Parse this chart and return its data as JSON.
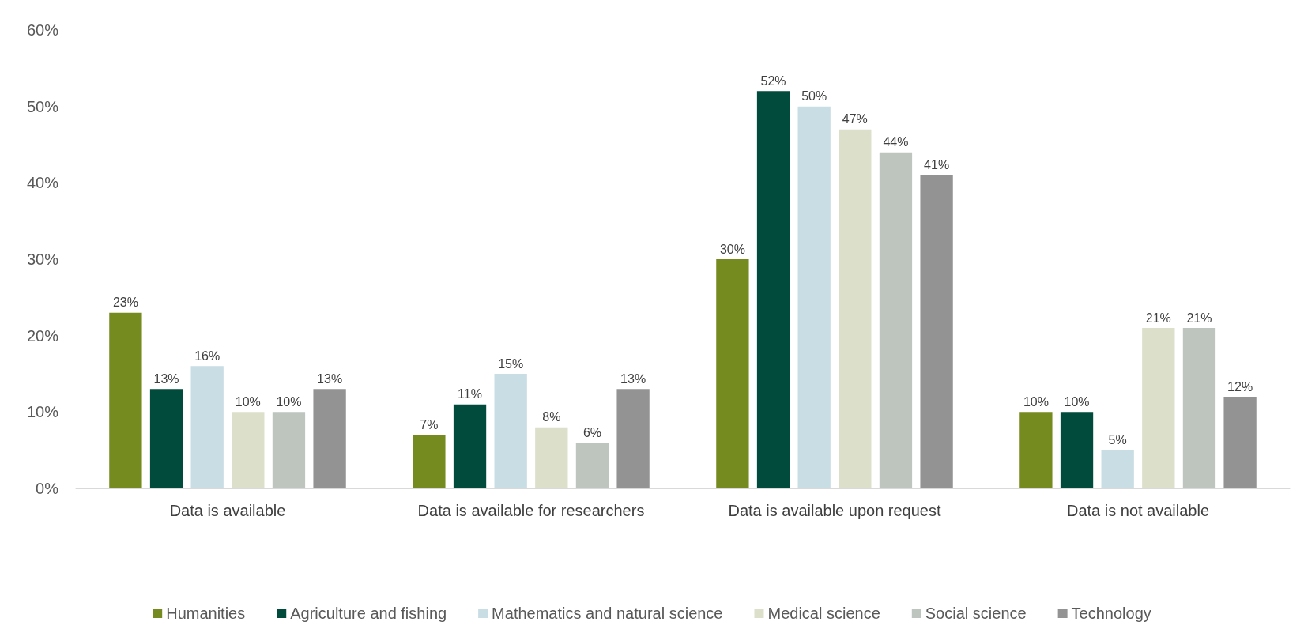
{
  "chart_data": {
    "type": "bar",
    "categories": [
      "Data is available",
      "Data is available for researchers",
      "Data is available upon request",
      "Data is not available"
    ],
    "series": [
      {
        "name": "Humanities",
        "color": "#768b1f",
        "values": [
          23,
          7,
          30,
          10
        ],
        "value_labels": [
          "23%",
          "7%",
          "30%",
          "10%"
        ]
      },
      {
        "name": "Agriculture and fishing",
        "color": "#004b3b",
        "values": [
          13,
          11,
          52,
          10
        ],
        "value_labels": [
          "13%",
          "11%",
          "52%",
          "10%"
        ]
      },
      {
        "name": "Mathematics and natural science",
        "color": "#c9dde4",
        "values": [
          16,
          15,
          50,
          5
        ],
        "value_labels": [
          "16%",
          "15%",
          "50%",
          "5%"
        ]
      },
      {
        "name": "Medical science",
        "color": "#dcdfca",
        "values": [
          10,
          8,
          47,
          21
        ],
        "value_labels": [
          "10%",
          "8%",
          "47%",
          "21%"
        ]
      },
      {
        "name": "Social science",
        "color": "#bec5bf",
        "values": [
          10,
          6,
          44,
          21
        ],
        "value_labels": [
          "10%",
          "6%",
          "44%",
          "21%"
        ]
      },
      {
        "name": "Technology",
        "color": "#939393",
        "values": [
          13,
          13,
          41,
          12
        ],
        "value_labels": [
          "13%",
          "13%",
          "41%",
          "12%"
        ]
      }
    ],
    "ylim": [
      0,
      60
    ],
    "yticks": [
      {
        "value": 0,
        "label": "0%"
      },
      {
        "value": 10,
        "label": "10%"
      },
      {
        "value": 20,
        "label": "20%"
      },
      {
        "value": 30,
        "label": "30%"
      },
      {
        "value": 40,
        "label": "40%"
      },
      {
        "value": 50,
        "label": "50%"
      },
      {
        "value": 60,
        "label": "60%"
      }
    ],
    "grid": false,
    "legend": "bottom"
  }
}
